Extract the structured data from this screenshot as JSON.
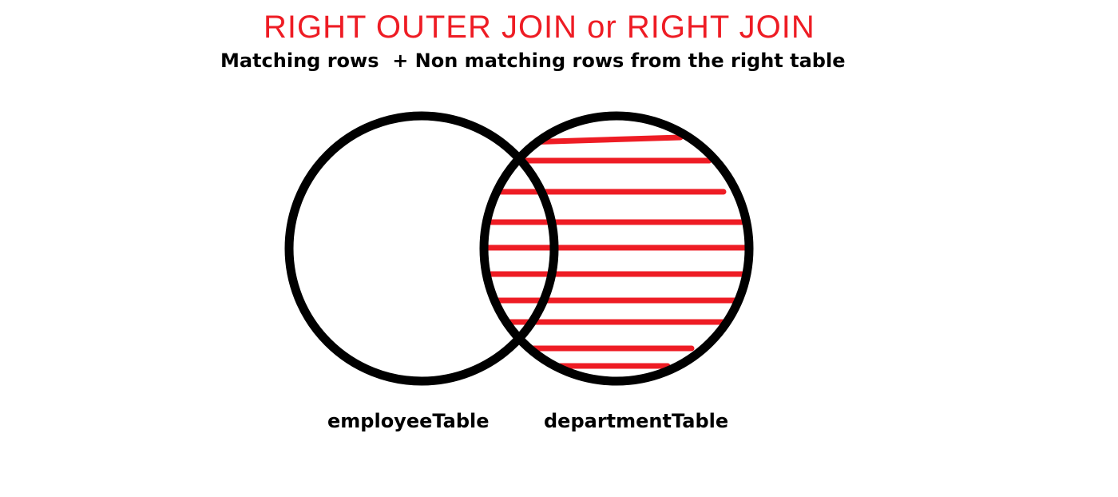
{
  "title": "RIGHT OUTER JOIN or RIGHT JOIN",
  "subtitle": "Matching rows  + Non matching rows from the right table",
  "diagram": {
    "left_set_label": "employeeTable",
    "right_set_label": "departmentTable",
    "highlighted_set": "right",
    "shading": "horizontal-hatch"
  },
  "colors": {
    "title": "#ee1c24",
    "outline": "#000000",
    "hatch": "#ee1c24",
    "text": "#000000"
  }
}
